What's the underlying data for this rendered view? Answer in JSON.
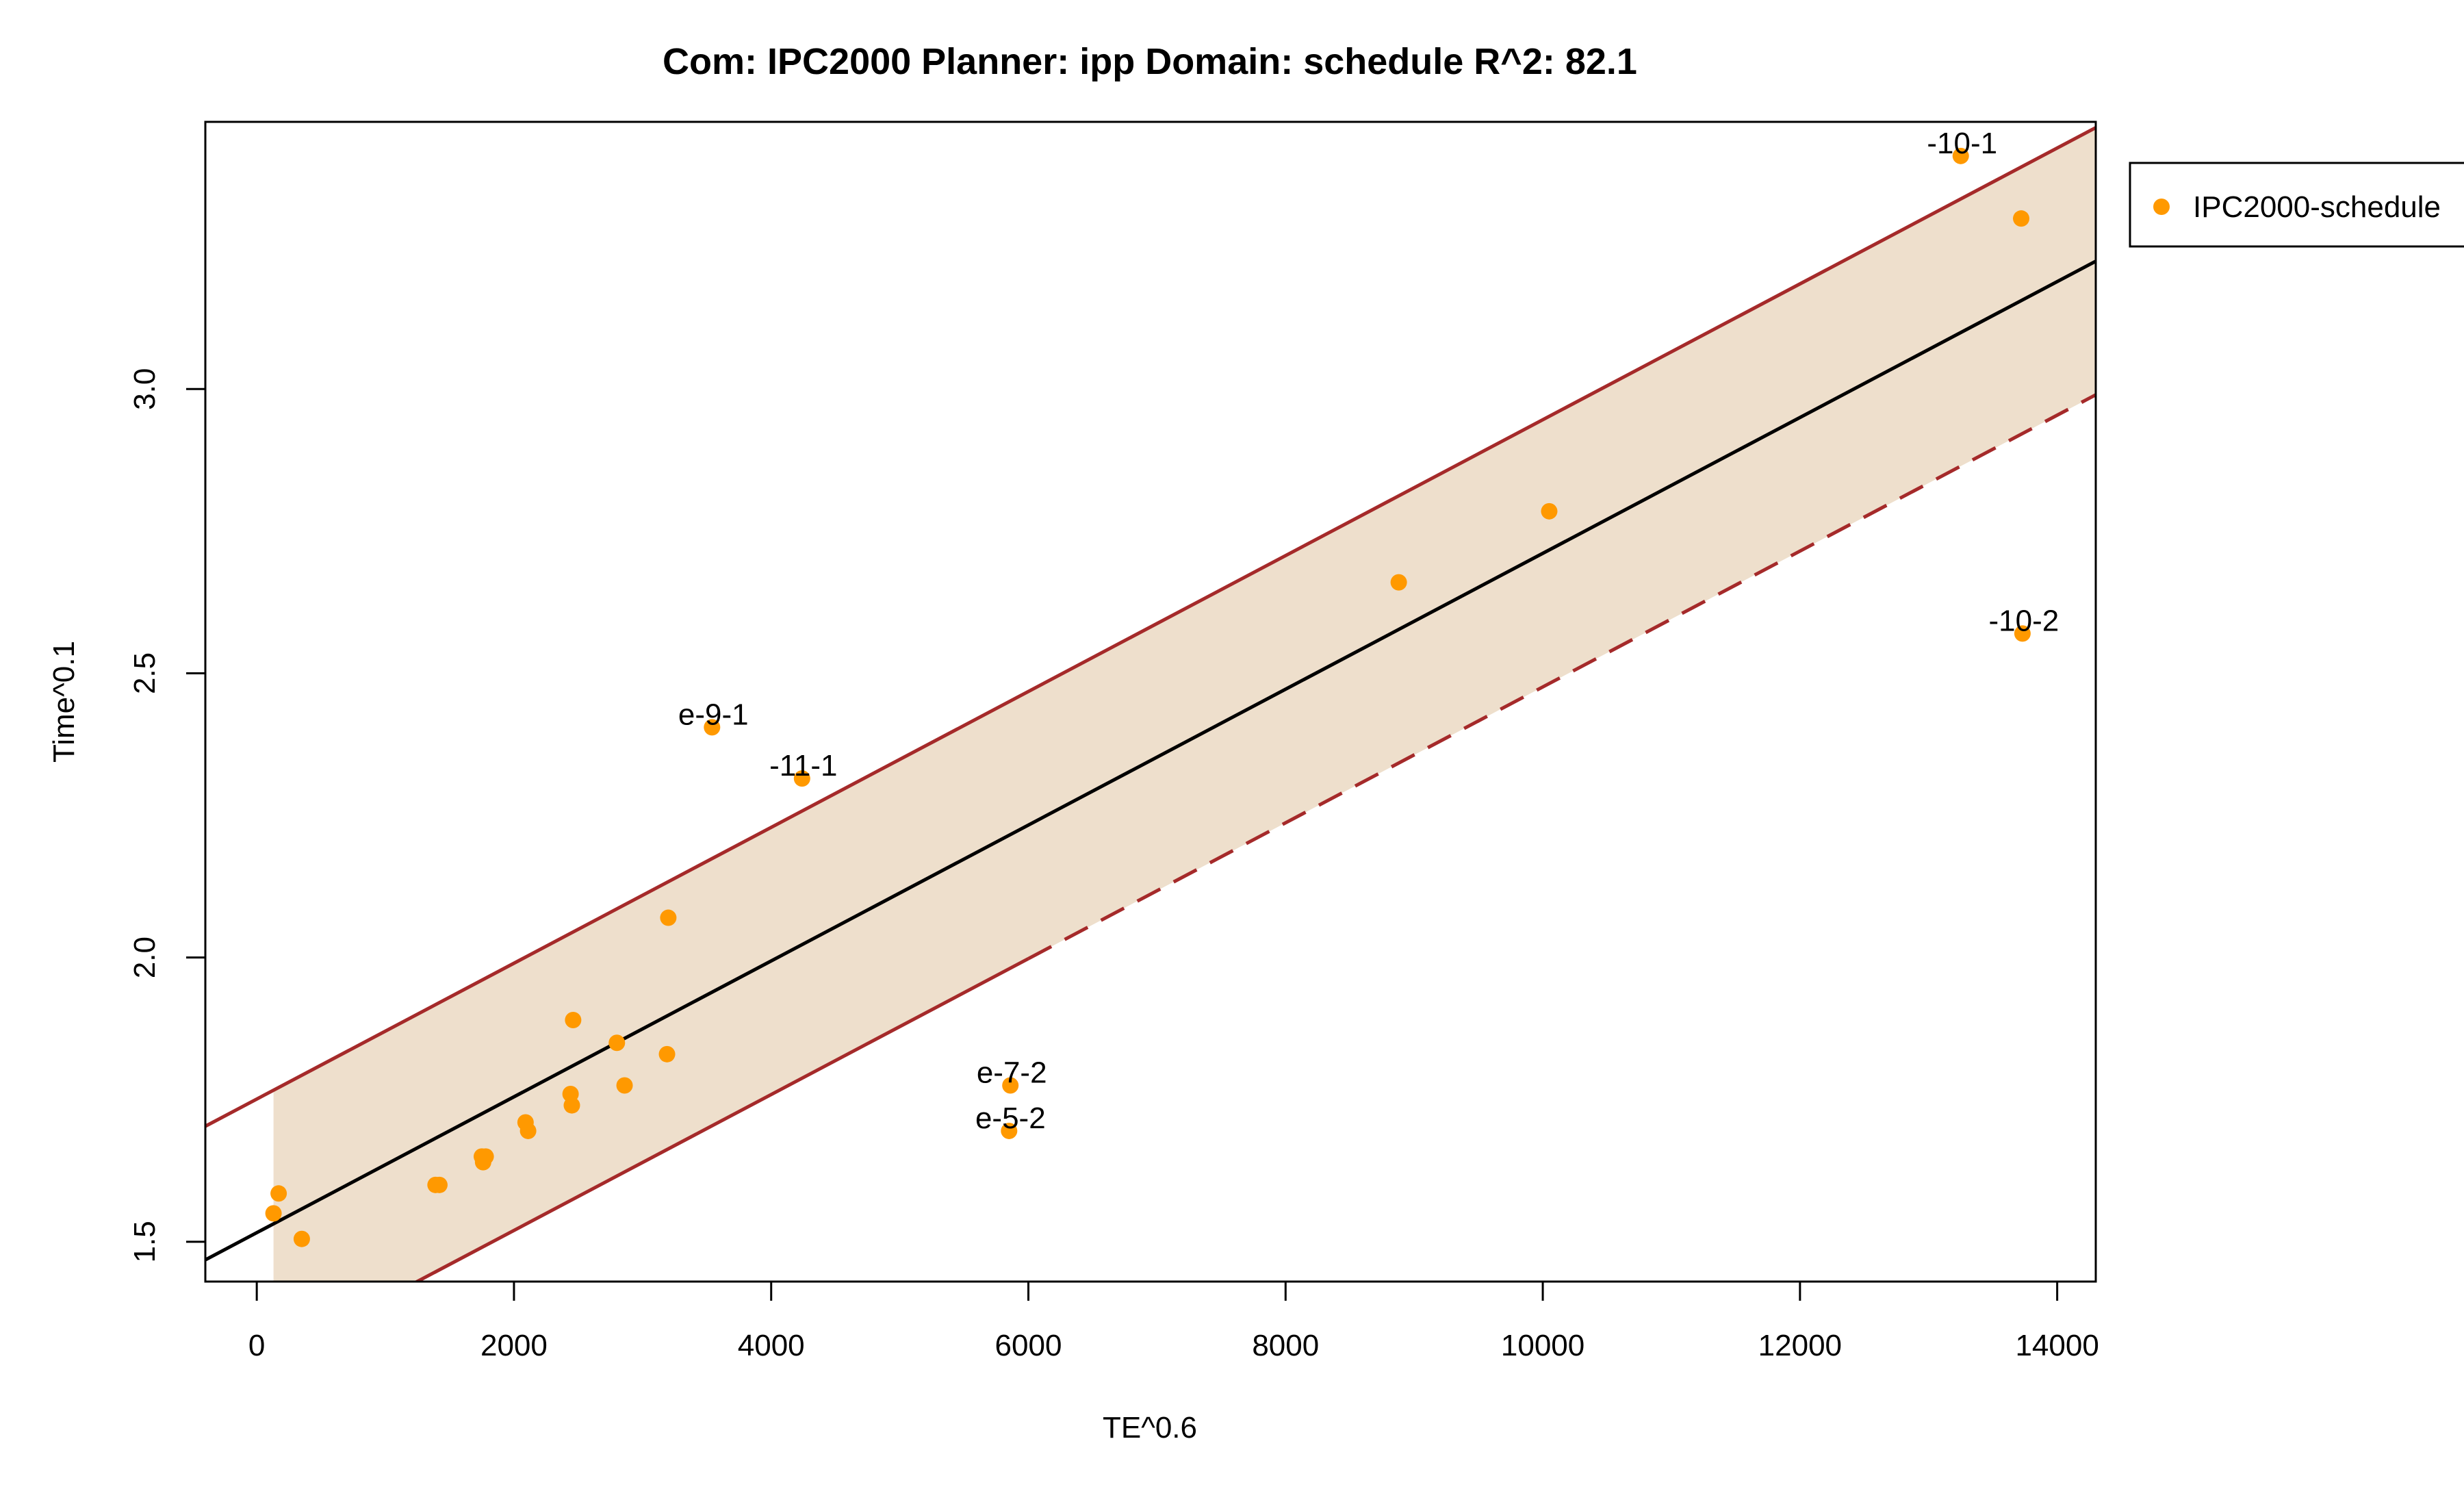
{
  "chart_data": {
    "type": "scatter",
    "title": "Com: IPC2000 Planner: ipp Domain: schedule R^2: 82.1",
    "xlabel": "TE^0.6",
    "ylabel": "Time^0.1",
    "xlim": [
      -400,
      14300
    ],
    "ylim": [
      1.43,
      3.47
    ],
    "x_ticks": [
      0,
      2000,
      4000,
      6000,
      8000,
      10000,
      12000,
      14000
    ],
    "y_ticks": [
      1.5,
      2.0,
      2.5,
      3.0
    ],
    "x_tick_labels": [
      "0",
      "2000",
      "4000",
      "6000",
      "8000",
      "10000",
      "12000",
      "14000"
    ],
    "y_tick_labels": [
      "1.5",
      "2.0",
      "2.5",
      "3.0"
    ],
    "grid": false,
    "legend": {
      "position": "top-right",
      "entries": [
        "IPC2000-schedule"
      ]
    },
    "colors": {
      "points": "#FF9900",
      "fit_line": "#000000",
      "band_fill": "#EEDFCC",
      "band_lines": "#A52A2A"
    },
    "series": [
      {
        "name": "IPC2000-schedule",
        "points": [
          {
            "x": 130,
            "y": 1.55
          },
          {
            "x": 170,
            "y": 1.585
          },
          {
            "x": 350,
            "y": 1.505
          },
          {
            "x": 1390,
            "y": 1.6
          },
          {
            "x": 1420,
            "y": 1.6
          },
          {
            "x": 1750,
            "y": 1.65
          },
          {
            "x": 1760,
            "y": 1.64
          },
          {
            "x": 1780,
            "y": 1.65
          },
          {
            "x": 2090,
            "y": 1.71
          },
          {
            "x": 2110,
            "y": 1.695
          },
          {
            "x": 2440,
            "y": 1.76
          },
          {
            "x": 2450,
            "y": 1.74
          },
          {
            "x": 2460,
            "y": 1.89
          },
          {
            "x": 2800,
            "y": 1.85
          },
          {
            "x": 2860,
            "y": 1.775
          },
          {
            "x": 3190,
            "y": 1.83
          },
          {
            "x": 3200,
            "y": 2.07
          },
          {
            "x": 3540,
            "y": 2.405,
            "label": "e-9-1"
          },
          {
            "x": 4240,
            "y": 2.315,
            "label": "-11-1"
          },
          {
            "x": 5850,
            "y": 1.695,
            "label": "e-5-2"
          },
          {
            "x": 5860,
            "y": 1.775,
            "label": "e-7-2"
          },
          {
            "x": 8880,
            "y": 2.66
          },
          {
            "x": 10050,
            "y": 2.785
          },
          {
            "x": 13250,
            "y": 3.41,
            "label": "-10-1"
          },
          {
            "x": 13720,
            "y": 3.3
          },
          {
            "x": 13730,
            "y": 2.57,
            "label": "-10-2"
          }
        ]
      }
    ],
    "fit": {
      "intercept": 1.516,
      "slope": 0.0001195
    },
    "band": {
      "offset": 0.235,
      "x_start": 130
    }
  }
}
